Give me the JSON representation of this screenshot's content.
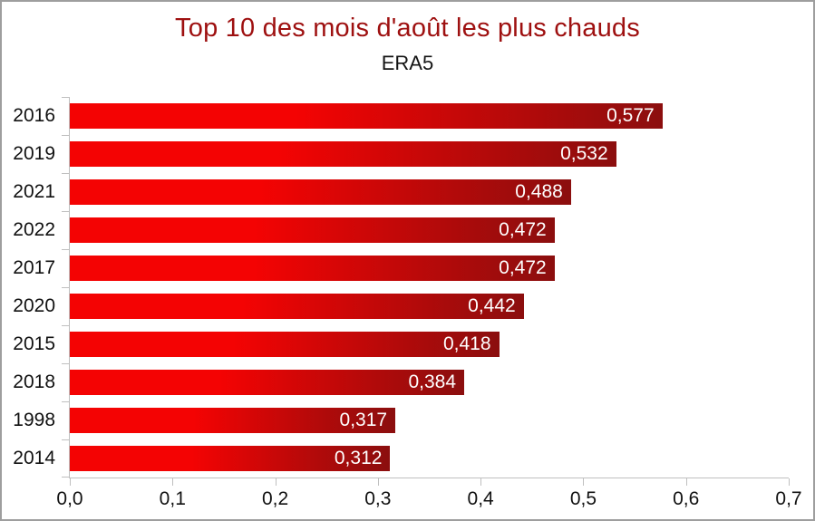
{
  "window": {
    "background": "#ffffff",
    "border_color": "#9e9e9e"
  },
  "chart_data": {
    "type": "bar",
    "orientation": "horizontal",
    "title": "Top 10 des mois d'août les plus chauds",
    "subtitle": "ERA5",
    "categories": [
      "2016",
      "2019",
      "2021",
      "2022",
      "2017",
      "2020",
      "2015",
      "2018",
      "1998",
      "2014"
    ],
    "values": [
      0.577,
      0.532,
      0.488,
      0.472,
      0.472,
      0.442,
      0.418,
      0.384,
      0.317,
      0.312
    ],
    "value_labels": [
      "0,577",
      "0,532",
      "0,488",
      "0,472",
      "0,472",
      "0,442",
      "0,418",
      "0,384",
      "0,317",
      "0,312"
    ],
    "xlim": [
      0,
      0.7
    ],
    "x_tick_labels": [
      "0,0",
      "0,1",
      "0,2",
      "0,3",
      "0,4",
      "0,5",
      "0,6",
      "0,7"
    ],
    "grid": false,
    "legend": false,
    "value_labels_position": "inside-end",
    "colors": {
      "title": "#9e1010",
      "bar_gradient_start": "#f40303",
      "bar_gradient_end": "#8b0e0e",
      "value_label": "#ffffff",
      "axis": "#bfbfbf",
      "tick_label": "#111111"
    }
  }
}
